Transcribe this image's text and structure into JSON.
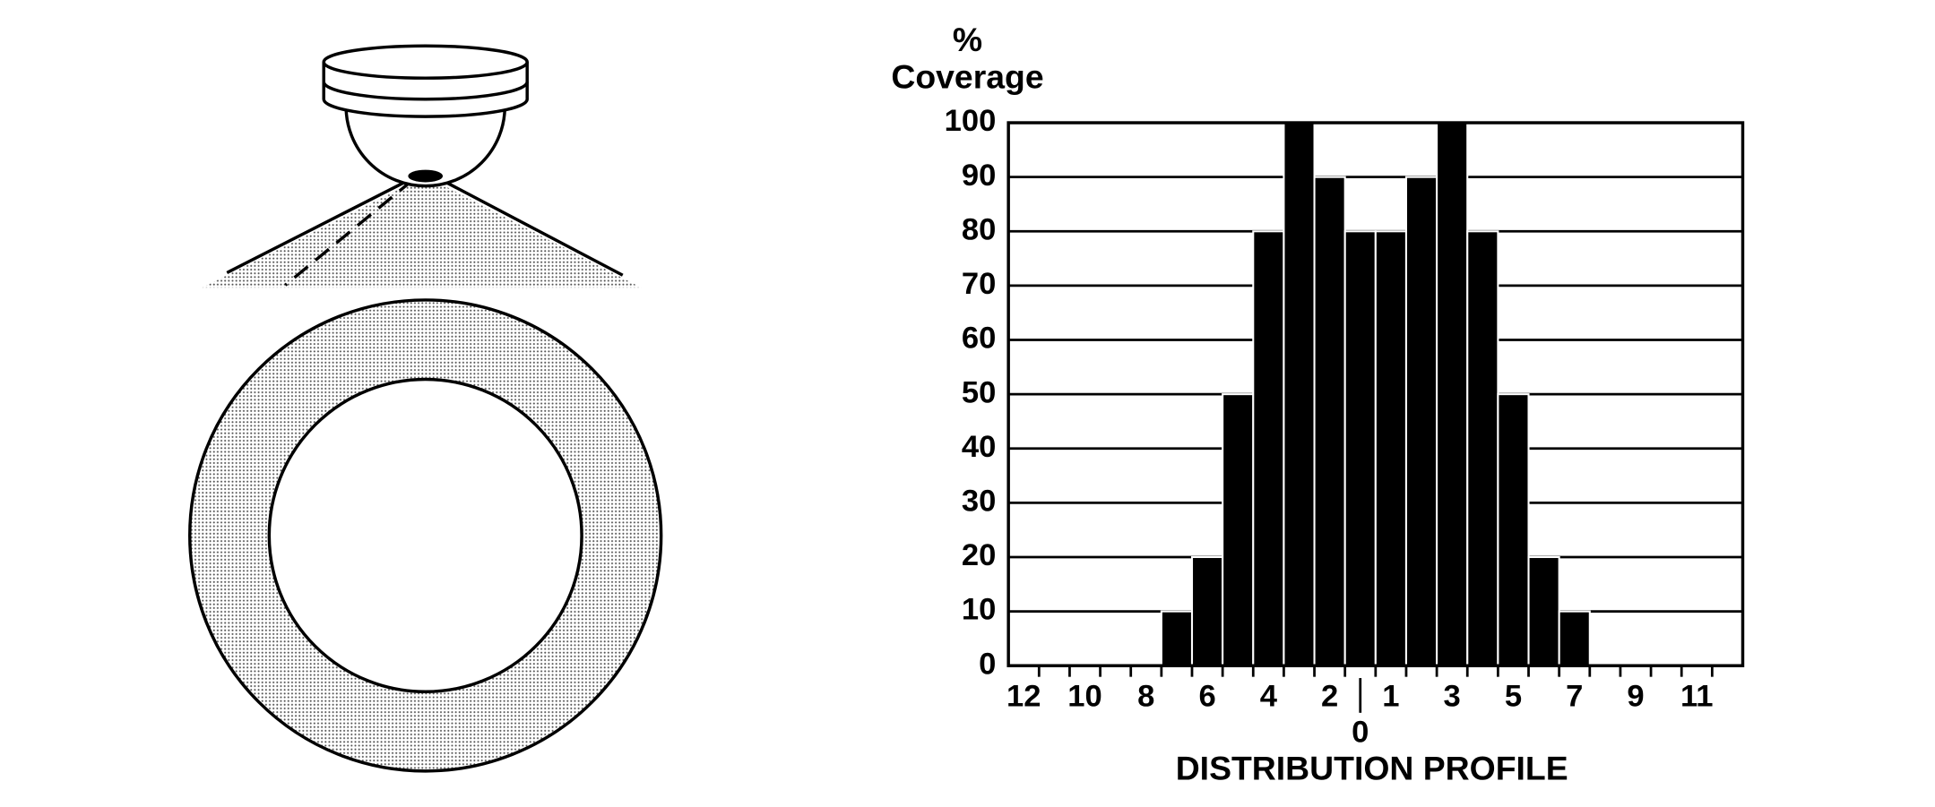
{
  "chart_data": {
    "type": "bar",
    "y_label": [
      "%",
      "Coverage"
    ],
    "x_label": "DISTRIBUTION PROFILE",
    "categories": [
      "12",
      null,
      "10",
      null,
      "8",
      null,
      "6",
      null,
      "4",
      null,
      "2",
      "0",
      "1",
      null,
      "3",
      null,
      "5",
      null,
      "7",
      null,
      "9",
      null,
      "11",
      null
    ],
    "values": [
      0,
      0,
      0,
      0,
      0,
      10,
      20,
      50,
      80,
      100,
      90,
      80,
      80,
      90,
      100,
      80,
      50,
      20,
      10,
      0,
      0,
      0,
      0,
      0
    ],
    "color": "#000000",
    "ylim": [
      0,
      100
    ],
    "yticks": [
      0,
      10,
      20,
      30,
      40,
      50,
      60,
      70,
      80,
      90,
      100
    ],
    "grid": true
  }
}
